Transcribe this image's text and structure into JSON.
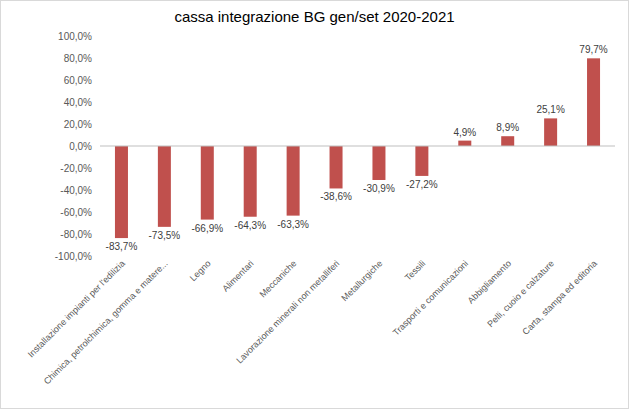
{
  "chart_data": {
    "type": "bar",
    "title": "cassa integrazione BG gen/set 2020-2021",
    "categories": [
      "Installazione impianti per l'edilizia",
      "Chimica, petrolchimica, gomma e matere...",
      "Legno",
      "Alimentari",
      "Meccaniche",
      "Lavorazione minerali non metalliferi",
      "Metallurgiche",
      "Tessili",
      "Trasporti e comunicazioni",
      "Abbigliamento",
      "Pelli, cuoio e calzature",
      "Carta, stampa ed editoria"
    ],
    "values": [
      -83.7,
      -73.5,
      -66.9,
      -64.3,
      -63.3,
      -38.6,
      -30.9,
      -27.2,
      4.9,
      8.9,
      25.1,
      79.7
    ],
    "value_labels": [
      "-83,7%",
      "-73,5%",
      "-66,9%",
      "-64,3%",
      "-63,3%",
      "-38,6%",
      "-30,9%",
      "-27,2%",
      "4,9%",
      "8,9%",
      "25,1%",
      "79,7%"
    ],
    "color": "#c0504d",
    "ylim": [
      -100,
      100
    ],
    "yticks": [
      {
        "value": -100,
        "label": "-100,0%"
      },
      {
        "value": -80,
        "label": "-80,0%"
      },
      {
        "value": -60,
        "label": "-60,0%"
      },
      {
        "value": -40,
        "label": "-40,0%"
      },
      {
        "value": -20,
        "label": "-20,0%"
      },
      {
        "value": 0,
        "label": "0,0%"
      },
      {
        "value": 20,
        "label": "20,0%"
      },
      {
        "value": 40,
        "label": "40,0%"
      },
      {
        "value": 60,
        "label": "60,0%"
      },
      {
        "value": 80,
        "label": "80,0%"
      },
      {
        "value": 100,
        "label": "100,0%"
      }
    ],
    "grid": false,
    "data_labels": true
  }
}
